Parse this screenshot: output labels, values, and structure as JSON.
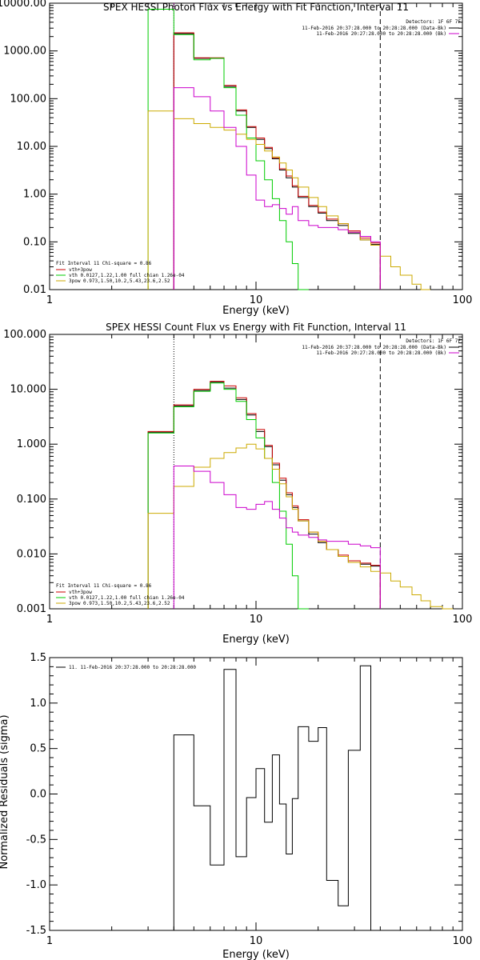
{
  "chart_data": [
    {
      "type": "line",
      "title": "SPEX HESSI Photon Flux vs Energy with Fit Function, Interval 11",
      "xlabel": "Energy (keV)",
      "ylabel": "",
      "xscale": "log",
      "yscale": "log",
      "xlim": [
        1,
        100
      ],
      "ylim": [
        0.01,
        10000
      ],
      "x_ticks": [
        1,
        10,
        100
      ],
      "y_ticks": [
        "0.01",
        "0.10",
        "1.00",
        "10.00",
        "100.00",
        "1000.00",
        "10000.00"
      ],
      "x_edges": [
        3.0,
        4.0,
        5.0,
        6.0,
        7.0,
        8.0,
        9.0,
        10.0,
        11.0,
        12.0,
        13.0,
        14.0,
        15.0,
        16.0,
        18.0,
        20.0,
        22.0,
        25.0,
        28.0,
        32.0,
        36.0,
        40.0,
        45.0,
        50.0,
        57.0,
        63.0,
        70.0
      ],
      "detectors_text": "Detectors: 1F 6F 7F",
      "time_lines": [
        "11-Feb-2016 20:37:28.000 to 20:28:28.000 (Data-Bk)",
        "11-Feb-2016 20:27:28.000 to 20:28:28.000 (Bk)"
      ],
      "fit_info": [
        "Fit Interval 11    Chi-square = 0.86",
        "vth+3pow",
        "vth 0.0127,1.22,1.00  full chian 1.26e-04",
        "3pow 0.973,1.50,10.2,5.43,23.6,2.52"
      ],
      "markers": [
        {
          "x": 4.0,
          "style": "dotted",
          "color": "#cc00cc"
        },
        {
          "x": 40.0,
          "style": "dashed",
          "color": "#000000"
        }
      ],
      "series": [
        {
          "name": "Data-Bk",
          "color": "#000000",
          "values": [
            null,
            2300,
            700,
            700,
            180,
            55,
            25,
            14,
            9,
            5.5,
            3.2,
            2.2,
            1.4,
            0.85,
            0.55,
            0.4,
            0.28,
            0.22,
            0.15,
            0.11,
            0.088,
            null,
            null,
            null,
            null,
            null
          ]
        },
        {
          "name": "vth+3pow",
          "color": "#cc0000",
          "values": [
            null,
            2400,
            720,
            720,
            190,
            58,
            26,
            15,
            9.5,
            5.8,
            3.4,
            2.4,
            1.5,
            0.9,
            0.58,
            0.42,
            0.3,
            0.24,
            0.17,
            0.12,
            0.095,
            null,
            null,
            null,
            null,
            null
          ]
        },
        {
          "name": "vth",
          "color": "#00cc00",
          "values": [
            7500,
            2200,
            650,
            700,
            170,
            45,
            15,
            5.0,
            2.0,
            0.8,
            0.28,
            0.1,
            0.035,
            0.01,
            null,
            null,
            null,
            null,
            null,
            null,
            null,
            null,
            null,
            null,
            null,
            null
          ]
        },
        {
          "name": "3pow",
          "color": "#ccaa00",
          "values": [
            55,
            38,
            30,
            25,
            22,
            18,
            14,
            11,
            8,
            6,
            4.5,
            3.2,
            2.2,
            1.4,
            0.85,
            0.55,
            0.35,
            0.24,
            0.16,
            0.11,
            0.085,
            0.05,
            0.03,
            0.02,
            0.013,
            0.01
          ]
        },
        {
          "name": "Bk",
          "color": "#cc00cc",
          "values": [
            null,
            170,
            110,
            55,
            25,
            10,
            2.5,
            0.75,
            0.55,
            0.6,
            0.5,
            0.38,
            0.55,
            0.28,
            0.22,
            0.2,
            0.2,
            0.18,
            0.16,
            0.13,
            0.1,
            null,
            null,
            null,
            null,
            null
          ]
        }
      ]
    },
    {
      "type": "line",
      "title": "SPEX HESSI Count Flux vs Energy with Fit Function, Interval 11",
      "xlabel": "Energy (keV)",
      "ylabel": "",
      "xscale": "log",
      "yscale": "log",
      "xlim": [
        1,
        100
      ],
      "ylim": [
        0.001,
        100
      ],
      "x_ticks": [
        1,
        10,
        100
      ],
      "y_ticks": [
        "0.001",
        "0.010",
        "0.100",
        "1.000",
        "10.000",
        "100.000"
      ],
      "x_edges": [
        3.0,
        4.0,
        5.0,
        6.0,
        7.0,
        8.0,
        9.0,
        10.0,
        11.0,
        12.0,
        13.0,
        14.0,
        15.0,
        16.0,
        18.0,
        20.0,
        22.0,
        25.0,
        28.0,
        32.0,
        36.0,
        40.0,
        45.0,
        50.0,
        57.0,
        63.0,
        70.0,
        80.0,
        90.0
      ],
      "detectors_text": "Detectors: 1F 6F 7F",
      "time_lines": [
        "11-Feb-2016 20:37:28.000 to 20:28:28.000 (Data-Bk)",
        "11-Feb-2016 20:27:28.000 to 20:28:28.000 (Bk)"
      ],
      "fit_info": [
        "Fit Interval 11    Chi-square = 0.86",
        "vth+3pow",
        "vth 0.0127,1.22,1.00  full chian 1.26e-04",
        "3pow 0.973,1.50,10.2,5.43,23.6,2.52"
      ],
      "markers": [
        {
          "x": 4.0,
          "style": "dotted",
          "color": "#000000"
        },
        {
          "x": 40.0,
          "style": "dashed",
          "color": "#000000"
        }
      ],
      "series": [
        {
          "name": "Data-Bk",
          "color": "#000000",
          "values": [
            1.65,
            5.0,
            9.5,
            13.5,
            10.5,
            6.5,
            3.4,
            1.7,
            0.9,
            0.42,
            0.22,
            0.12,
            0.07,
            0.04,
            0.023,
            0.016,
            0.012,
            0.009,
            0.007,
            0.0065,
            0.006,
            null,
            null,
            null,
            null,
            null,
            null,
            null
          ]
        },
        {
          "name": "vth+3pow",
          "color": "#cc0000",
          "values": [
            1.7,
            5.2,
            10.0,
            14.0,
            11.5,
            7.0,
            3.6,
            1.85,
            0.95,
            0.45,
            0.24,
            0.13,
            0.075,
            0.042,
            0.025,
            0.017,
            0.012,
            0.0095,
            0.0075,
            0.0068,
            0.0062,
            null,
            null,
            null,
            null,
            null,
            null,
            null
          ]
        },
        {
          "name": "vth",
          "color": "#00cc00",
          "values": [
            1.6,
            4.8,
            9.2,
            13.0,
            10.0,
            6.0,
            2.8,
            1.3,
            0.55,
            0.2,
            0.06,
            0.015,
            0.004,
            0.001,
            null,
            null,
            null,
            null,
            null,
            null,
            null,
            null,
            null,
            null,
            null,
            null,
            null,
            null
          ]
        },
        {
          "name": "3pow",
          "color": "#ccaa00",
          "values": [
            0.055,
            0.17,
            0.38,
            0.55,
            0.7,
            0.85,
            1.0,
            0.82,
            0.55,
            0.35,
            0.19,
            0.11,
            0.065,
            0.04,
            0.025,
            0.017,
            0.012,
            0.009,
            0.007,
            0.0058,
            0.0048,
            0.0045,
            0.0032,
            0.0025,
            0.0018,
            0.0014,
            0.0011,
            0.001
          ]
        },
        {
          "name": "Bk",
          "color": "#cc00cc",
          "values": [
            null,
            0.4,
            0.32,
            0.2,
            0.12,
            0.07,
            0.065,
            0.08,
            0.09,
            0.065,
            0.045,
            0.03,
            0.025,
            0.022,
            0.02,
            0.018,
            0.017,
            0.017,
            0.015,
            0.014,
            0.013,
            null,
            null,
            null,
            null,
            null,
            null,
            null
          ]
        }
      ]
    },
    {
      "type": "line",
      "title": "",
      "xlabel": "Energy (keV)",
      "ylabel": "Normalized Residuals (sigma)",
      "xscale": "log",
      "yscale": "linear",
      "xlim": [
        1,
        100
      ],
      "ylim": [
        -1.5,
        1.5
      ],
      "x_ticks": [
        1,
        10,
        100
      ],
      "y_ticks": [
        "-1.5",
        "-1.0",
        "-0.5",
        "0.0",
        "0.5",
        "1.0",
        "1.5"
      ],
      "legend_text": "11. 11-Feb-2016 20:37:28.000 to 20:28:28.000",
      "x_edges": [
        4.0,
        5.0,
        6.0,
        7.0,
        8.0,
        9.0,
        10.0,
        11.0,
        12.0,
        13.0,
        14.0,
        15.0,
        16.0,
        18.0,
        20.0,
        22.0,
        25.0,
        28.0,
        32.0,
        36.0,
        40.0
      ],
      "series": [
        {
          "name": "Residuals",
          "color": "#000000",
          "values": [
            0.65,
            -0.13,
            -0.78,
            1.37,
            -0.69,
            -0.04,
            0.28,
            -0.31,
            0.43,
            -0.11,
            -0.66,
            -0.05,
            0.74,
            0.58,
            0.73,
            -0.95,
            -1.23,
            0.48,
            1.41,
            null
          ]
        }
      ]
    }
  ]
}
